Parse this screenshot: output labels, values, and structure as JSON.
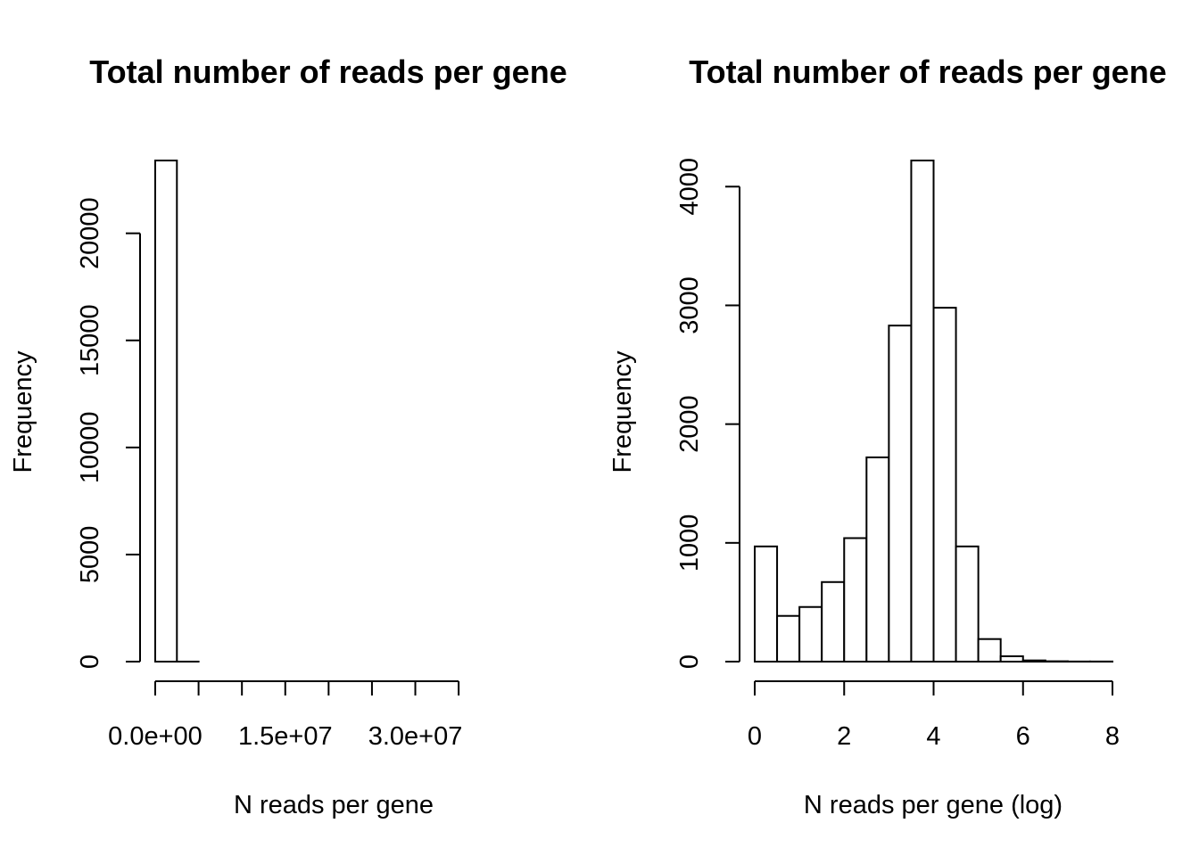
{
  "chart_data": [
    {
      "type": "bar",
      "title": "Total number of reads per gene",
      "xlabel": "N reads per gene",
      "ylabel": "Frequency",
      "bin_edges": [
        0,
        2500000,
        5000000,
        7500000,
        10000000,
        12500000,
        15000000,
        17500000,
        20000000,
        22500000,
        25000000,
        27500000,
        30000000,
        32500000,
        35000000,
        37500000,
        40000000,
        42500000
      ],
      "values": [
        23400,
        1,
        0,
        0,
        0,
        0,
        0,
        0,
        0,
        0,
        0,
        0,
        0,
        0,
        0,
        0,
        0
      ],
      "xlim": [
        0,
        42500000
      ],
      "ylim": [
        0,
        23400
      ],
      "x_ticks": [
        0,
        5000000,
        10000000,
        15000000,
        20000000,
        25000000,
        30000000,
        35000000
      ],
      "x_tick_labels": [
        "0.0e+00",
        "",
        "",
        "1.5e+07",
        "",
        "",
        "3.0e+07",
        ""
      ],
      "y_ticks": [
        0,
        5000,
        10000,
        15000,
        20000
      ],
      "y_tick_labels": [
        "0",
        "5000",
        "10000",
        "15000",
        "20000"
      ],
      "grid": false
    },
    {
      "type": "bar",
      "title": "Total number of reads per gene",
      "xlabel": "N reads per gene (log)",
      "ylabel": "Frequency",
      "bin_edges": [
        0,
        0.5,
        1,
        1.5,
        2,
        2.5,
        3,
        3.5,
        4,
        4.5,
        5,
        5.5,
        6,
        6.5,
        7,
        7.5,
        8
      ],
      "values": [
        970,
        385,
        460,
        670,
        1040,
        1720,
        2830,
        4220,
        2980,
        970,
        190,
        45,
        10,
        3,
        1,
        1
      ],
      "xlim": [
        0,
        8
      ],
      "ylim": [
        0,
        4220
      ],
      "x_ticks": [
        0,
        2,
        4,
        6,
        8
      ],
      "x_tick_labels": [
        "0",
        "2",
        "4",
        "6",
        "8"
      ],
      "y_ticks": [
        0,
        1000,
        2000,
        3000,
        4000
      ],
      "y_tick_labels": [
        "0",
        "1000",
        "2000",
        "3000",
        "4000"
      ],
      "grid": false
    }
  ]
}
